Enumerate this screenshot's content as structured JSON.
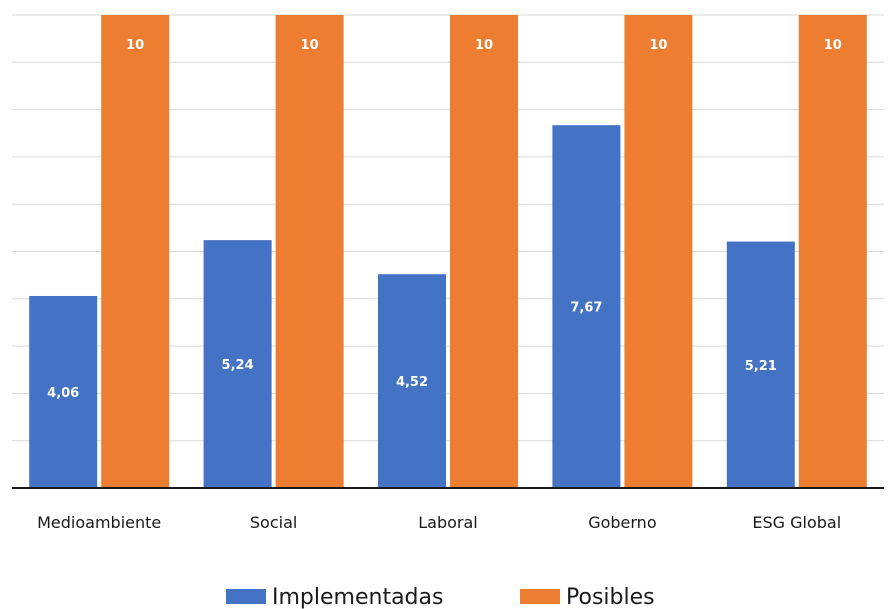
{
  "chart_data": {
    "type": "bar",
    "categories": [
      "Medioambiente",
      "Social",
      "Laboral",
      "Goberno",
      "ESG Global"
    ],
    "series": [
      {
        "name": "Implementadas",
        "values": [
          4.06,
          5.24,
          4.52,
          7.67,
          5.21
        ],
        "labels": [
          "4,06",
          "5,24",
          "4,52",
          "7,67",
          "5,21"
        ],
        "color": "#4472c4"
      },
      {
        "name": "Posibles",
        "values": [
          10,
          10,
          10,
          10,
          10
        ],
        "labels": [
          "10",
          "10",
          "10",
          "10",
          "10"
        ],
        "color": "#ed7d31"
      }
    ],
    "ylim": [
      0,
      10
    ],
    "grid": true,
    "legend_position": "bottom"
  }
}
